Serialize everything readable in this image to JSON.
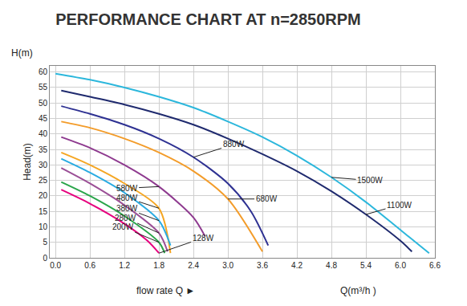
{
  "chart_data": {
    "type": "line",
    "title": "PERFORMANCE CHART AT n=2850RPM",
    "xlabel": "flow rate Q ►",
    "ylabel": "Head(m)",
    "annotations": [
      {
        "text": "Q(m³/h )"
      },
      {
        "text": "H(m)"
      }
    ],
    "xlim": [
      -0.1,
      6.6
    ],
    "xticks": [
      {
        "value": 0,
        "label": "0.0"
      },
      0.6,
      1.2,
      1.8,
      2.4,
      {
        "value": 3,
        "label": "3.0"
      },
      3.6,
      4.2,
      4.8,
      5.4,
      {
        "value": 6,
        "label": "6.0"
      },
      6.6
    ],
    "ylim": [
      0,
      62
    ],
    "yticks": [
      0,
      5,
      10,
      15,
      20,
      25,
      30,
      35,
      40,
      45,
      50,
      55,
      60
    ],
    "grid": true,
    "series": [
      {
        "name": "1500W",
        "color": "#2cb7dc",
        "x": [
          0,
          0.6,
          1.2,
          1.8,
          2.4,
          3.0,
          3.6,
          4.2,
          4.8,
          5.4,
          6.0,
          6.5
        ],
        "values": [
          59.5,
          57.5,
          55,
          52,
          48.5,
          44,
          39,
          33,
          26,
          18,
          9,
          1.5
        ]
      },
      {
        "name": "1100W",
        "color": "#1f2a6e",
        "x": [
          0.1,
          0.6,
          1.2,
          1.8,
          2.4,
          3.0,
          3.6,
          4.2,
          4.8,
          5.4,
          6.0,
          6.2
        ],
        "values": [
          54,
          52,
          49.5,
          46.5,
          43,
          38.5,
          33.5,
          28,
          21.5,
          14,
          5.5,
          2
        ]
      },
      {
        "name": "880W",
        "color": "#2e3192",
        "x": [
          0.1,
          0.6,
          1.2,
          1.8,
          2.4,
          3.0,
          3.4,
          3.7
        ],
        "values": [
          49,
          46.5,
          43,
          38.5,
          32.5,
          24,
          15,
          4
        ]
      },
      {
        "name": "680W",
        "color": "#f39c2a",
        "x": [
          0.1,
          0.6,
          1.2,
          1.8,
          2.4,
          3.0,
          3.6
        ],
        "values": [
          44,
          42,
          38.5,
          34,
          28,
          19,
          2
        ]
      },
      {
        "name": "580W",
        "color": "#8e3a8f",
        "x": [
          0.1,
          0.6,
          1.2,
          1.8,
          2.4,
          2.6
        ],
        "values": [
          39,
          35.5,
          30,
          23,
          13,
          7
        ]
      },
      {
        "name": "480W",
        "color": "#f5a623",
        "x": [
          0.1,
          0.6,
          1.2,
          1.8,
          2.0
        ],
        "values": [
          34,
          30,
          24,
          16,
          1.5
        ]
      },
      {
        "name": "380W",
        "color": "#29abe2",
        "x": [
          0.1,
          0.6,
          1.2,
          1.8,
          2.0
        ],
        "values": [
          32,
          27.5,
          21,
          12,
          4
        ]
      },
      {
        "name": "280W",
        "color": "#9b4f96",
        "x": [
          0.1,
          0.6,
          1.2,
          1.8,
          1.95
        ],
        "values": [
          29,
          24,
          17,
          8,
          2
        ]
      },
      {
        "name": "200W",
        "color": "#2aa54a",
        "x": [
          0.1,
          0.6,
          1.2,
          1.8,
          1.9
        ],
        "values": [
          24.5,
          20,
          13.5,
          5,
          1.5
        ]
      },
      {
        "name": "128W",
        "color": "#e6007e",
        "x": [
          0.1,
          0.6,
          1.2,
          1.6,
          1.8
        ],
        "values": [
          22,
          17.5,
          11,
          5.5,
          1.5
        ]
      }
    ]
  }
}
